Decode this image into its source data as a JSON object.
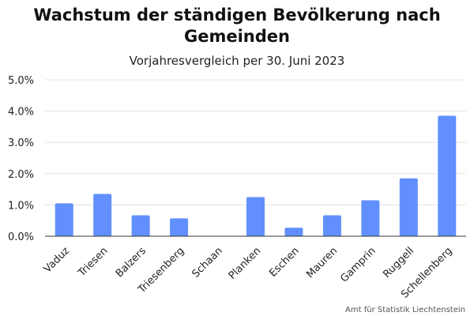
{
  "chart_data": {
    "type": "bar",
    "title_line1": "Wachstum der ständigen Bevölkerung nach",
    "title_line2": "Gemeinden",
    "subtitle": "Vorjahresvergleich per 30. Juni 2023",
    "source": "Amt für Statistik Liechtenstein",
    "categories": [
      "Vaduz",
      "Triesen",
      "Balzers",
      "Triesenberg",
      "Schaan",
      "Planken",
      "Eschen",
      "Mauren",
      "Gamprin",
      "Ruggell",
      "Schellenberg"
    ],
    "values": [
      1.05,
      1.35,
      0.67,
      0.57,
      0.0,
      1.25,
      0.27,
      0.67,
      1.15,
      1.85,
      3.85
    ],
    "ylim": [
      0,
      5
    ],
    "yticks": [
      "0.0%",
      "1.0%",
      "2.0%",
      "3.0%",
      "4.0%",
      "5.0%"
    ],
    "grid": true,
    "colors": {
      "bar": "#6190fe",
      "grid": "#e3e3e3",
      "axis": "#333333"
    }
  }
}
